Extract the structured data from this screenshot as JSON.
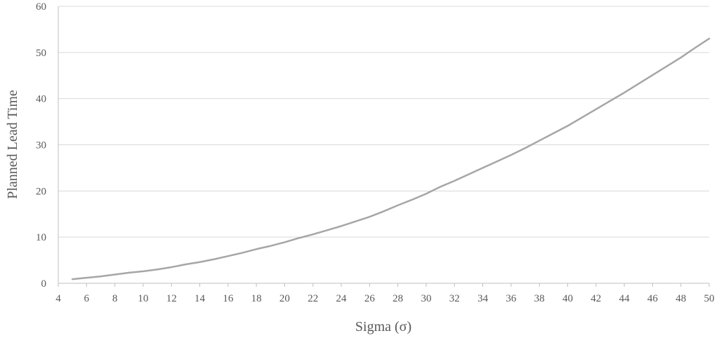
{
  "chart_data": {
    "type": "line",
    "xlabel": "Sigma (σ)",
    "ylabel": "Planned Lead Time",
    "xlim": [
      4,
      50
    ],
    "ylim": [
      0,
      60
    ],
    "x_ticks": [
      4,
      6,
      8,
      10,
      12,
      14,
      16,
      18,
      20,
      22,
      24,
      26,
      28,
      30,
      32,
      34,
      36,
      38,
      40,
      42,
      44,
      46,
      48,
      50
    ],
    "y_ticks": [
      0,
      10,
      20,
      30,
      40,
      50,
      60
    ],
    "grid": "horizontal",
    "legend": "none",
    "line_color": "#a6a6a6",
    "series": [
      {
        "x": [
          5,
          6,
          7,
          8,
          9,
          10,
          11,
          12,
          13,
          14,
          15,
          16,
          17,
          18,
          19,
          20,
          21,
          22,
          23,
          24,
          25,
          26,
          27,
          28,
          29,
          30,
          31,
          32,
          33,
          34,
          35,
          36,
          37,
          38,
          39,
          40,
          41,
          42,
          43,
          44,
          45,
          46,
          47,
          48,
          49,
          50
        ],
        "values": [
          0.9,
          1.2,
          1.5,
          1.9,
          2.3,
          2.6,
          3.0,
          3.5,
          4.1,
          4.6,
          5.2,
          5.9,
          6.6,
          7.4,
          8.1,
          8.9,
          9.8,
          10.6,
          11.5,
          12.4,
          13.4,
          14.4,
          15.6,
          16.9,
          18.1,
          19.4,
          20.9,
          22.2,
          23.6,
          25.0,
          26.4,
          27.8,
          29.3,
          30.9,
          32.5,
          34.1,
          35.9,
          37.7,
          39.5,
          41.3,
          43.2,
          45.1,
          47.0,
          48.9,
          51.0,
          53.0
        ]
      }
    ]
  }
}
